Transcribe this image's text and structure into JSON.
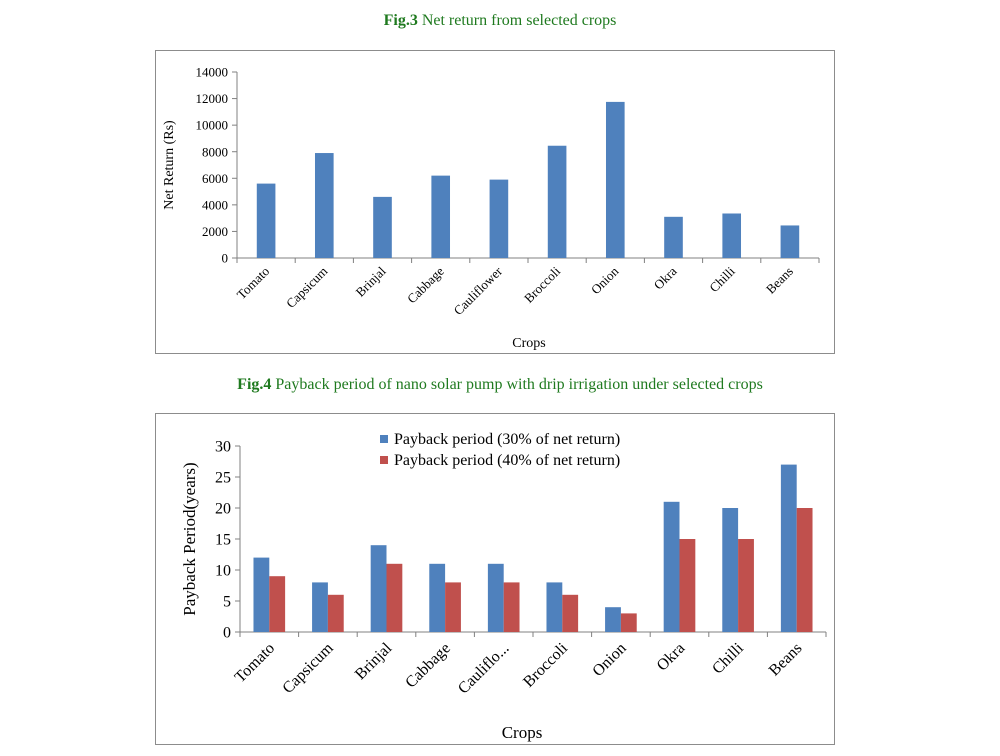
{
  "figures": [
    {
      "caption_label": "Fig.3",
      "caption_text": " Net return from selected crops"
    },
    {
      "caption_label": "Fig.4",
      "caption_text": " Payback period of nano solar pump with drip irrigation under selected crops"
    }
  ],
  "colors": {
    "caption": "#1f7a1f",
    "series_blue": "#4f81bd",
    "series_red": "#c0504d",
    "axis": "#808080"
  },
  "chart_data": [
    {
      "type": "bar",
      "title": "",
      "xlabel": "Crops",
      "ylabel": "Net Return (Rs)",
      "ylim": [
        0,
        14000
      ],
      "yticks": [
        "0",
        "2000",
        "4000",
        "6000",
        "8000",
        "10000",
        "12000",
        "14000"
      ],
      "categories": [
        "Tomato",
        "Capsicum",
        "Brinjal",
        "Cabbage",
        "Cauliflower",
        "Broccoli",
        "Onion",
        "Okra",
        "Chilli",
        "Beans"
      ],
      "series": [
        {
          "values": [
            5600,
            7900,
            4600,
            6200,
            5900,
            8450,
            11750,
            3100,
            3350,
            2450
          ]
        }
      ],
      "grid": false,
      "legend": "none"
    },
    {
      "type": "bar",
      "title": "",
      "xlabel": "Crops",
      "ylabel": "Payback Period(years)",
      "ylim": [
        0,
        30
      ],
      "yticks": [
        "0",
        "5",
        "10",
        "15",
        "20",
        "25",
        "30"
      ],
      "categories": [
        "Tomato",
        "Capsicum",
        "Brinjal",
        "Cabbage",
        "Cauliflo...",
        "Broccoli",
        "Onion",
        "Okra",
        "Chilli",
        "Beans"
      ],
      "series": [
        {
          "name": "Payback period (30% of net return)",
          "values": [
            12,
            8,
            14,
            11,
            11,
            8,
            4,
            21,
            20,
            27
          ]
        },
        {
          "name": "Payback period (40% of net return)",
          "values": [
            9,
            6,
            11,
            8,
            8,
            6,
            3,
            15,
            15,
            20
          ]
        }
      ],
      "grid": false,
      "legend": "top-center"
    }
  ]
}
